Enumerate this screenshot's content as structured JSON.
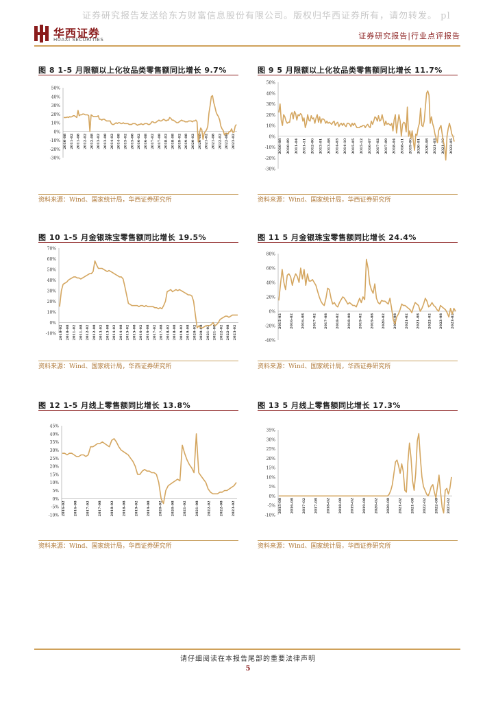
{
  "watermark": "证券研究报告发送给东方财富信息股份有限公司。版权归华西证券所有，请勿转发。 pl",
  "header": {
    "logo_cn": "华西证券",
    "logo_en": "HUAXI SECURITIES",
    "right_text": "证券研究报告|行业点评报告",
    "brand_color": "#8a1c1c",
    "accent_color": "#cfa15a"
  },
  "footer": {
    "notice": "请仔细阅读在本报告尾部的重要法律声明",
    "page": "5"
  },
  "line_color": "#d4a660",
  "chart_data": [
    {
      "type": "line",
      "title": "图 8 1-5 月限额以上化妆品类零售额同比增长 9.7%",
      "source": "资料来源：Wind、国家统计局，华西证券研究所",
      "y_ticks": [
        "50%",
        "40%",
        "30%",
        "20%",
        "10%",
        "0%",
        "-10%",
        "-20%",
        "-30%"
      ],
      "ylim": [
        -30,
        50
      ],
      "x_ticks": [
        "2010-08",
        "2011-02",
        "2011-08",
        "2012-02",
        "2012-08",
        "2013-02",
        "2013-08",
        "2014-02",
        "2014-08",
        "2015-02",
        "2015-08",
        "2016-02",
        "2016-08",
        "2017-02",
        "2017-08",
        "2018-02",
        "2018-08",
        "2019-02",
        "2019-08",
        "2020-02",
        "2020-08",
        "2021-02",
        "2021-08",
        "2022-02",
        "2022-08",
        "2023-02"
      ],
      "values": [
        16,
        16,
        16,
        16.5,
        16,
        17,
        16.5,
        17,
        18,
        18,
        17,
        16,
        24,
        18,
        19,
        19,
        20,
        20,
        19,
        19,
        19,
        18,
        0,
        19,
        18,
        17,
        17,
        17,
        17,
        18,
        14,
        14,
        13,
        14,
        14,
        13,
        12,
        12,
        12,
        12,
        9,
        8,
        8,
        9,
        10,
        9,
        10,
        10,
        9,
        9,
        10,
        9,
        9,
        9,
        9,
        8,
        8,
        8,
        9,
        9,
        9,
        8,
        7,
        8,
        8,
        9,
        8,
        8,
        9,
        9,
        9,
        8,
        8,
        9,
        11,
        11,
        10,
        10,
        11,
        12,
        13,
        12,
        12,
        13,
        14,
        13,
        12,
        13,
        13,
        16,
        15,
        13,
        13,
        12,
        11,
        10,
        10,
        11,
        12,
        13,
        12,
        12,
        11,
        11,
        11,
        12,
        12,
        12,
        11,
        12,
        12,
        13,
        11,
        -12,
        -2,
        4,
        2,
        -9,
        -2,
        0,
        2,
        6,
        21,
        30,
        40,
        41,
        33,
        28,
        22,
        19,
        17,
        13,
        6,
        3,
        1,
        -4,
        -2,
        -2,
        -3,
        0,
        0,
        3,
        -1,
        -1,
        6,
        8
      ]
    },
    {
      "type": "line",
      "title": "图 9 5 月限额以上化妆品类零售额同比增长 11.7%",
      "source": "资料来源：Wind、国家统计局，华西证券研究所",
      "y_ticks": [
        "50%",
        "40%",
        "30%",
        "20%",
        "10%",
        "0%",
        "-10%",
        "-20%",
        "-30%"
      ],
      "ylim": [
        -30,
        50
      ],
      "x_ticks": [
        "2010-08",
        "2010-09",
        "2011-04",
        "2011-11",
        "2012-06",
        "2013-01",
        "2013-08",
        "2014-03",
        "2014-10",
        "2015-05",
        "2015-12",
        "2016-07",
        "2017-02",
        "2017-09",
        "2018-04",
        "2018-11",
        "2019-06",
        "2020-01",
        "2020-08",
        "2021-03",
        "2021-10",
        "2022-05"
      ],
      "values": [
        22,
        30,
        15,
        10,
        20,
        18,
        14,
        12,
        13,
        13,
        20,
        22,
        16,
        23,
        21,
        15,
        20,
        19,
        21,
        20,
        14,
        17,
        8,
        12,
        20,
        15,
        14,
        19,
        16,
        17,
        12,
        17,
        20,
        13,
        18,
        12,
        16,
        16,
        15,
        12,
        14,
        12,
        13,
        12,
        11,
        13,
        14,
        10,
        12,
        13,
        9,
        11,
        12,
        10,
        12,
        10,
        9,
        12,
        12,
        11,
        9,
        12,
        10,
        12,
        10,
        8,
        8,
        8,
        9,
        9,
        10,
        10,
        8,
        10,
        11,
        9,
        8,
        14,
        11,
        14,
        18,
        17,
        14,
        19,
        14,
        15,
        20,
        15,
        10,
        14,
        11,
        12,
        11,
        10,
        12,
        5,
        15,
        20,
        3,
        12,
        20,
        14,
        0,
        11,
        13,
        12,
        4,
        27,
        0,
        5,
        -2,
        5,
        -5,
        -13,
        2,
        1,
        8,
        12,
        26,
        10,
        9,
        14,
        27,
        40,
        42,
        38,
        12,
        18,
        12,
        8,
        2,
        -2,
        -6,
        5,
        8,
        10,
        2,
        -5,
        -10,
        -22,
        0,
        7,
        12,
        8,
        2,
        0,
        -5
      ]
    },
    {
      "type": "line",
      "title": "图 10 1-5 月金银珠宝零售额同比增长 19.5%",
      "source": "资料来源：Wind、国家统计局，华西证券研究所",
      "y_ticks": [
        "70%",
        "60%",
        "50%",
        "40%",
        "30%",
        "20%",
        "10%",
        "0%",
        "-10%"
      ],
      "ylim": [
        -10,
        70
      ],
      "x_ticks": [
        "2010-02",
        "2010-08",
        "2011-02",
        "2011-08",
        "2012-02",
        "2012-08",
        "2013-02",
        "2013-08",
        "2014-02",
        "2014-08",
        "2015-02",
        "2015-08",
        "2016-02",
        "2016-08",
        "2017-02",
        "2017-08",
        "2018-02",
        "2018-08",
        "2019-02",
        "2019-08",
        "2020-02",
        "2020-08",
        "2021-02",
        "2021-08",
        "2022-02",
        "2022-08",
        "2023-02"
      ],
      "values": [
        15,
        30,
        36,
        37,
        38,
        40,
        41,
        42,
        43,
        43,
        42,
        42,
        41,
        42,
        43,
        44,
        45,
        46,
        46,
        48,
        58,
        54,
        51,
        51,
        51,
        50,
        49,
        48,
        49,
        48,
        47,
        46,
        45,
        44,
        43,
        43,
        41,
        34,
        26,
        18,
        17,
        16,
        16,
        16,
        16,
        15,
        16,
        16,
        15,
        16,
        15,
        15,
        15,
        15,
        14,
        14,
        13,
        14,
        13,
        16,
        20,
        29,
        30,
        31,
        29,
        30,
        31,
        30,
        31,
        30,
        29,
        28,
        27,
        26,
        26,
        25,
        20,
        7,
        -5,
        -3,
        -5,
        -5,
        -4,
        -3,
        -3,
        -3,
        -2,
        0,
        -3,
        -2,
        0,
        3,
        4,
        5,
        6,
        6,
        5,
        6,
        7,
        7,
        7,
        7
      ]
    },
    {
      "type": "line",
      "title": "图 11 5 月金银珠宝零售额同比增长 24.4%",
      "source": "资料来源：Wind、国家统计局，华西证券研究所",
      "y_ticks": [
        "80%",
        "60%",
        "40%",
        "20%",
        "0%",
        "-20%",
        "-40%"
      ],
      "ylim": [
        -40,
        80
      ],
      "x_ticks": [
        "2015-02",
        "2016-02",
        "2016-08",
        "2017-02",
        "2017-08",
        "2018-02",
        "2018-08",
        "2019-02",
        "2019-08",
        "2020-02",
        "2020-08",
        "2021-02",
        "2021-08",
        "2022-02",
        "2022-08",
        "2023-02"
      ],
      "values": [
        15,
        38,
        58,
        40,
        30,
        50,
        52,
        48,
        36,
        46,
        52,
        48,
        40,
        60,
        45,
        58,
        36,
        52,
        42,
        42,
        44,
        40,
        36,
        28,
        20,
        14,
        10,
        8,
        18,
        32,
        30,
        18,
        10,
        12,
        8,
        6,
        12,
        16,
        20,
        18,
        14,
        10,
        12,
        10,
        8,
        8,
        6,
        12,
        18,
        12,
        20,
        16,
        72,
        60,
        38,
        30,
        25,
        38,
        18,
        12,
        10,
        15,
        14,
        14,
        12,
        10,
        18,
        4,
        -12,
        -18,
        -8,
        -4,
        2,
        10,
        8,
        8,
        6,
        4,
        2,
        -2,
        6,
        12,
        10,
        8,
        0,
        4,
        10,
        18,
        14,
        6,
        8,
        12,
        8,
        6,
        2,
        0,
        8,
        6,
        4,
        2,
        -2,
        -8,
        4,
        -4,
        4,
        0
      ]
    },
    {
      "type": "line",
      "title": "图 12 1-5 月线上零售额同比增长 13.8%",
      "source": "资料来源：Wind、国家统计局，华西证券研究所",
      "y_ticks": [
        "45%",
        "40%",
        "35%",
        "30%",
        "25%",
        "20%",
        "15%",
        "10%",
        "5%",
        "0%",
        "-5%",
        "-10%"
      ],
      "ylim": [
        -10,
        45
      ],
      "x_ticks": [
        "2016-02",
        "2016-08",
        "2017-02",
        "2017-08",
        "2018-02",
        "2018-08",
        "2019-02",
        "2019-08",
        "2020-02",
        "2020-08",
        "2021-02",
        "2021-08",
        "2022-02",
        "2022-08",
        "2023-02"
      ],
      "values": [
        28,
        28,
        27,
        28,
        28,
        27,
        26,
        26,
        27,
        27,
        26,
        27,
        32,
        32,
        33,
        34,
        34,
        35,
        34,
        33,
        32,
        36,
        37,
        35,
        32,
        30,
        29,
        28,
        27,
        25,
        23,
        20,
        15,
        15,
        17,
        18,
        17,
        17,
        16,
        16,
        15,
        10,
        0,
        -3,
        5,
        8,
        9,
        10,
        11,
        12,
        11,
        33,
        28,
        24,
        21,
        19,
        16,
        40,
        16,
        14,
        12,
        10,
        6,
        4,
        3,
        3,
        3,
        4,
        4,
        5,
        5,
        6,
        7,
        8,
        10
      ]
    },
    {
      "type": "line",
      "title": "图 13 5 月线上零售额同比增长 17.3%",
      "source": "资料来源：Wind、国家统计局，华西证券研究所",
      "y_ticks": [
        "35%",
        "30%",
        "25%",
        "20%",
        "15%",
        "10%",
        "5%",
        "0%",
        "-5%",
        "-10%"
      ],
      "ylim": [
        -10,
        35
      ],
      "x_ticks": [
        "2015-08",
        "2016-08",
        "2017-02",
        "2017-08",
        "2018-02",
        "2018-08",
        "2019-02",
        "2019-08",
        "2020-02",
        "2020-08",
        "2021-02",
        "2021-08",
        "2022-02",
        "2022-08",
        "2023-02"
      ],
      "values": [
        0,
        0,
        0,
        0,
        0,
        0,
        0,
        0,
        0,
        0,
        0,
        0,
        0,
        0,
        0,
        0,
        0,
        0,
        0,
        0,
        0,
        0,
        0,
        0,
        0,
        0,
        0,
        0,
        0,
        0,
        0,
        0,
        0,
        0,
        0,
        0,
        0,
        0,
        0,
        0,
        0,
        0,
        0,
        0,
        0,
        0,
        0,
        0,
        0,
        0,
        0,
        0,
        0,
        0,
        0,
        0,
        0,
        0,
        0,
        0,
        0,
        0,
        0,
        0,
        0,
        0,
        0,
        0,
        0,
        0,
        0,
        1,
        3,
        6,
        12,
        18,
        19,
        16,
        12,
        17,
        13,
        3,
        2,
        18,
        28,
        20,
        8,
        3,
        12,
        29,
        33,
        20,
        10,
        5,
        3,
        1,
        0,
        2,
        5,
        6,
        2,
        -1,
        5,
        11,
        2,
        -6,
        -9,
        3,
        4,
        1,
        4,
        10
      ]
    }
  ]
}
